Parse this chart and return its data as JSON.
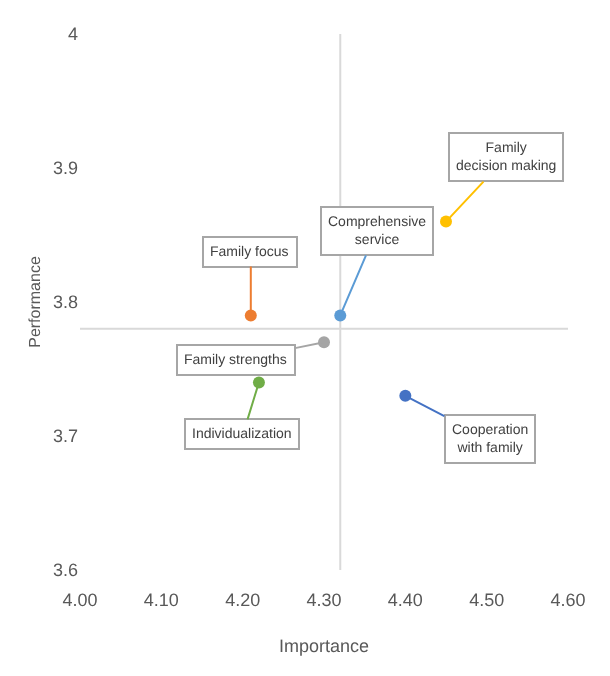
{
  "chart_data": {
    "type": "scatter",
    "xlabel": "Importance",
    "ylabel": "Performance",
    "xlim": [
      4.0,
      4.6
    ],
    "ylim": [
      3.6,
      4.0
    ],
    "xticks": [
      {
        "value": 4.0,
        "label": "4.00"
      },
      {
        "value": 4.1,
        "label": "4.10"
      },
      {
        "value": 4.2,
        "label": "4.20"
      },
      {
        "value": 4.3,
        "label": "4.30"
      },
      {
        "value": 4.4,
        "label": "4.40"
      },
      {
        "value": 4.5,
        "label": "4.50"
      },
      {
        "value": 4.6,
        "label": "4.60"
      }
    ],
    "yticks": [
      3.6,
      3.7,
      3.8,
      3.9,
      4
    ],
    "grid": false,
    "legend": false,
    "marker": "circle",
    "ref_lines": [
      {
        "axis": "x",
        "value": 4.32,
        "color": "#d9d9d9"
      },
      {
        "axis": "y",
        "value": 3.78,
        "color": "#d9d9d9"
      }
    ],
    "series": [
      {
        "name": "Family focus",
        "color": "#ed7d31",
        "x": [
          4.21
        ],
        "values": [
          3.79
        ]
      },
      {
        "name": "Comprehensive service",
        "color": "#5b9bd5",
        "x": [
          4.32
        ],
        "values": [
          3.79
        ]
      },
      {
        "name": "Family decision making",
        "color": "#ffc000",
        "x": [
          4.45
        ],
        "values": [
          3.86
        ]
      },
      {
        "name": "Family strengths",
        "color": "#a5a5a5",
        "x": [
          4.3
        ],
        "values": [
          3.77
        ]
      },
      {
        "name": "Individualization",
        "color": "#70ad47",
        "x": [
          4.22
        ],
        "values": [
          3.74
        ]
      },
      {
        "name": "Cooperation with family",
        "color": "#4472c4",
        "x": [
          4.4
        ],
        "values": [
          3.73
        ]
      }
    ]
  }
}
